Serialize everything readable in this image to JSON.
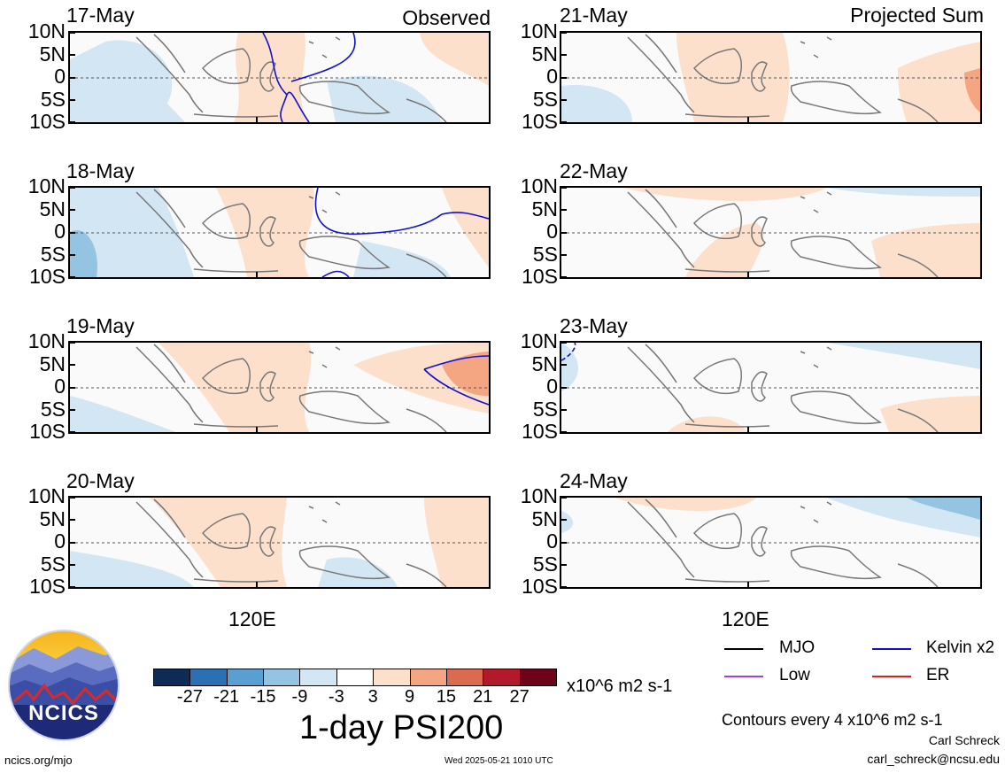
{
  "headers": {
    "left": "Observed",
    "right": "Projected Sum"
  },
  "lat_labels": [
    "10N",
    "5N",
    "0",
    "5S",
    "10S"
  ],
  "lon_label": "120E",
  "panels": [
    {
      "date": "17-May",
      "column": "observed"
    },
    {
      "date": "18-May",
      "column": "observed"
    },
    {
      "date": "19-May",
      "column": "observed"
    },
    {
      "date": "20-May",
      "column": "observed"
    },
    {
      "date": "21-May",
      "column": "projected"
    },
    {
      "date": "22-May",
      "column": "projected"
    },
    {
      "date": "23-May",
      "column": "projected"
    },
    {
      "date": "24-May",
      "column": "projected"
    }
  ],
  "colorbar": {
    "colors": [
      "#0d2b55",
      "#2b6fb4",
      "#5a9fd2",
      "#94c4e2",
      "#d3e6f3",
      "#ffffff",
      "#fde0cc",
      "#f4a682",
      "#dc6a4f",
      "#b2192b",
      "#6e0218"
    ],
    "ticks": [
      "-27",
      "-21",
      "-15",
      "-9",
      "-3",
      "3",
      "9",
      "15",
      "21",
      "27"
    ],
    "units": "x10^6 m2 s-1",
    "title": "1-day PSI200"
  },
  "legend": [
    {
      "label": "MJO",
      "color": "#000000"
    },
    {
      "label": "Kelvin x2",
      "color": "#1010d0"
    },
    {
      "label": "Low",
      "color": "#a040e0"
    },
    {
      "label": "ER",
      "color": "#e02020"
    }
  ],
  "contour_note": "Contours every 4 x10^6 m2 s-1",
  "credits": {
    "site": "ncics.org/mjo",
    "timestamp": "Wed 2025-05-21 1010 UTC",
    "author": "Carl Schreck",
    "email": "carl_schreck@ncsu.edu",
    "logo_text": "NCICS"
  }
}
